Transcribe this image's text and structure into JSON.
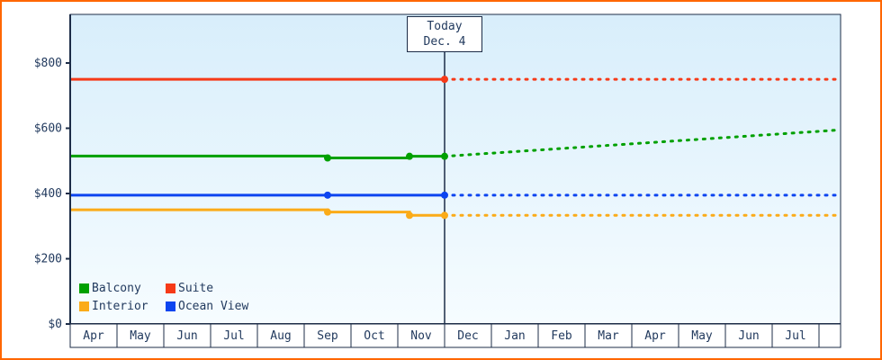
{
  "chart_data": {
    "type": "line",
    "x_axis": {
      "categories": [
        "Apr",
        "May",
        "Jun",
        "Jul",
        "Aug",
        "Sep",
        "Oct",
        "Nov",
        "Dec",
        "Jan",
        "Feb",
        "Mar",
        "Apr",
        "May",
        "Jun",
        "Jul"
      ]
    },
    "y_axis": {
      "tick_values": [
        0,
        200,
        400,
        600,
        800
      ],
      "tick_labels": [
        "$0",
        "$200",
        "$400",
        "$600",
        "$800"
      ],
      "range": [
        0,
        950
      ]
    },
    "grid": "off",
    "legend_position": "bottom-left-inside",
    "today": {
      "line1": "Today",
      "line2": "Dec. 4",
      "x_index": 8
    },
    "series": [
      {
        "name": "Balcony",
        "color": "#00a000",
        "history": [
          [
            0,
            515
          ],
          [
            5.5,
            515
          ],
          [
            5.5,
            509
          ],
          [
            7.25,
            509
          ],
          [
            7.25,
            514
          ],
          [
            8,
            514
          ]
        ],
        "markers": [
          [
            5.5,
            509
          ],
          [
            7.25,
            514
          ],
          [
            8,
            514
          ]
        ],
        "forecast": [
          [
            8,
            514
          ],
          [
            16.5,
            595
          ]
        ]
      },
      {
        "name": "Suite",
        "color": "#f63a18",
        "history": [
          [
            0,
            750
          ],
          [
            8,
            750
          ]
        ],
        "markers": [
          [
            8,
            750
          ]
        ],
        "forecast": [
          [
            8,
            750
          ],
          [
            16.5,
            750
          ]
        ]
      },
      {
        "name": "Interior",
        "color": "#fbab18",
        "history": [
          [
            0,
            350
          ],
          [
            5.5,
            350
          ],
          [
            5.5,
            343
          ],
          [
            7.25,
            343
          ],
          [
            7.25,
            333
          ],
          [
            8,
            333
          ]
        ],
        "markers": [
          [
            5.5,
            343
          ],
          [
            7.25,
            333
          ],
          [
            8,
            333
          ]
        ],
        "forecast": [
          [
            8,
            333
          ],
          [
            16.5,
            333
          ]
        ]
      },
      {
        "name": "Ocean View",
        "color": "#0d45f0",
        "history": [
          [
            0,
            395
          ],
          [
            8,
            395
          ]
        ],
        "markers": [
          [
            5.5,
            395
          ],
          [
            8,
            395
          ]
        ],
        "forecast": [
          [
            8,
            395
          ],
          [
            16.5,
            395
          ]
        ]
      }
    ],
    "legend_order": [
      "Balcony",
      "Suite",
      "Interior",
      "Ocean View"
    ]
  },
  "colors": {
    "frame_border": "#ff6600",
    "plot_bg_top": "#d8eefb",
    "plot_bg_bottom": "#f6fcff",
    "axis": "#1c2c47",
    "text": "#223a5e",
    "cell_bg": "#ffffff"
  }
}
